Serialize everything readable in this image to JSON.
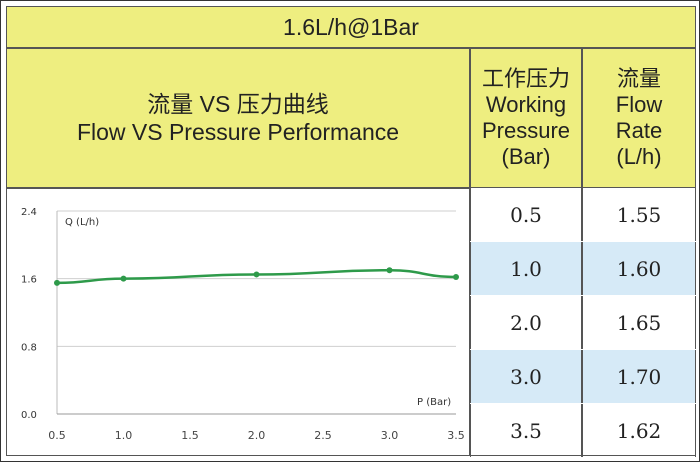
{
  "title": "1.6L/h@1Bar",
  "header": {
    "chart_title_cn": "流量 VS 压力曲线",
    "chart_title_en": "Flow VS Pressure Performance",
    "pressure_col": [
      "工作压力",
      "Working",
      "Pressure",
      "(Bar)"
    ],
    "flow_col": [
      "流量",
      "Flow",
      "Rate",
      "(L/h)"
    ]
  },
  "table": {
    "rows": [
      {
        "pressure": "0.5",
        "flow": "1.55",
        "highlight": false
      },
      {
        "pressure": "1.0",
        "flow": "1.60",
        "highlight": true
      },
      {
        "pressure": "2.0",
        "flow": "1.65",
        "highlight": false
      },
      {
        "pressure": "3.0",
        "flow": "1.70",
        "highlight": true
      },
      {
        "pressure": "3.5",
        "flow": "1.62",
        "highlight": false
      }
    ]
  },
  "chart_data": {
    "type": "line",
    "ylabel": "Q (L/h)",
    "xlabel": "P (Bar)",
    "xlim": [
      0.5,
      3.5
    ],
    "ylim": [
      0,
      2.4
    ],
    "x_ticks": [
      "0.5",
      "1.0",
      "1.5",
      "2.0",
      "2.5",
      "3.0",
      "3.5"
    ],
    "y_ticks": [
      "0.0",
      "0.8",
      "1.6",
      "2.4"
    ],
    "grid": true,
    "series": [
      {
        "x": [
          0.5,
          1.0,
          2.0,
          3.0,
          3.5
        ],
        "y": [
          1.55,
          1.6,
          1.65,
          1.7,
          1.62
        ],
        "color": "#2e9a4a"
      }
    ]
  }
}
